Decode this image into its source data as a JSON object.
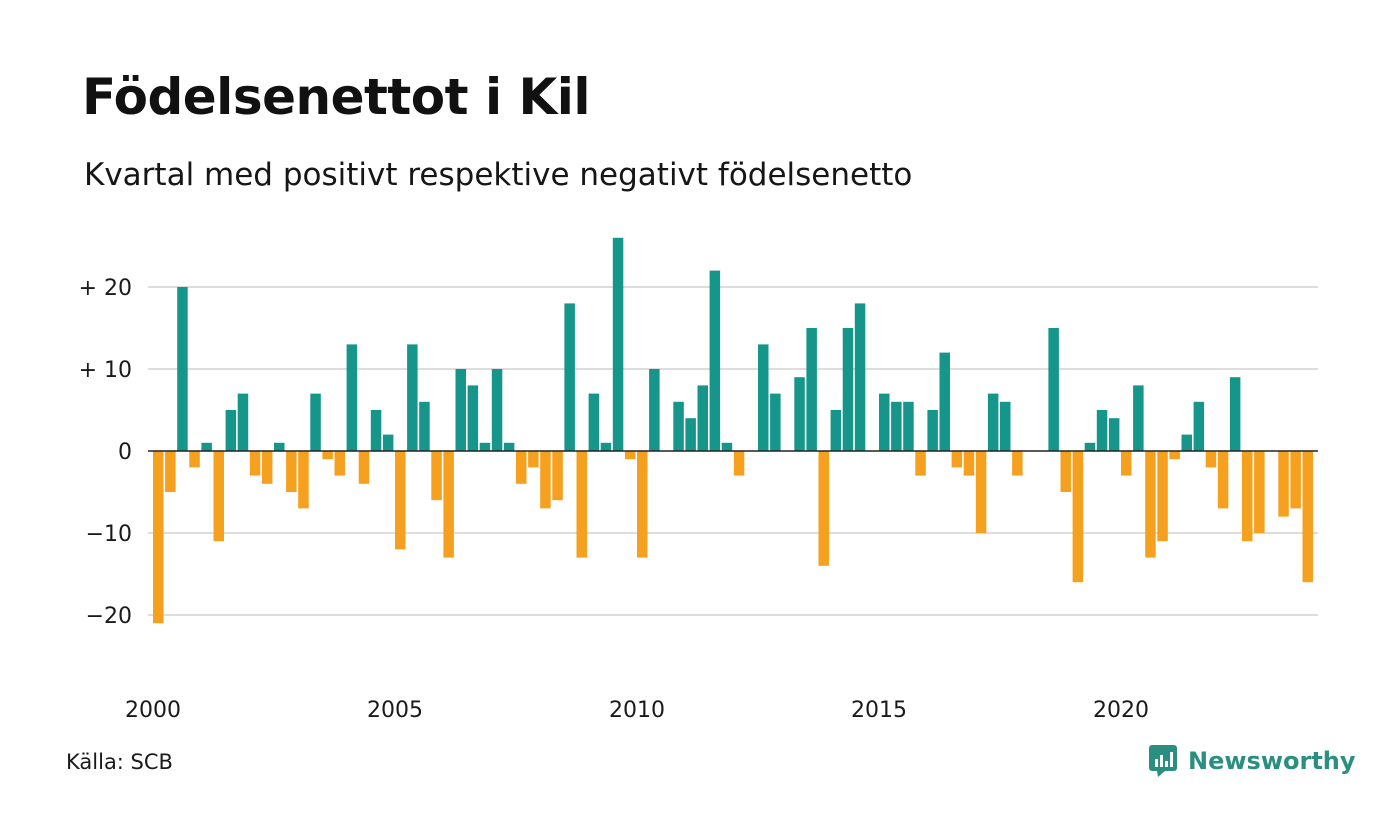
{
  "header": {
    "title": "Födelsenettot i Kil",
    "subtitle": "Kvartal med positivt respektive negativt födelsenetto"
  },
  "footer": {
    "source": "Källa: SCB",
    "brand": "Newsworthy"
  },
  "colors": {
    "positive": "#16968a",
    "negative": "#f5a01e",
    "grid": "#dddddd",
    "zero_line": "#222222",
    "brand": "#2a8f80"
  },
  "chart_data": {
    "type": "bar",
    "y_ticks": [
      {
        "value": 20,
        "label": "+ 20"
      },
      {
        "value": 10,
        "label": "+ 10"
      },
      {
        "value": 0,
        "label": "0"
      },
      {
        "value": -10,
        "label": "−10"
      },
      {
        "value": -20,
        "label": "−20"
      }
    ],
    "x_ticks": [
      "2000",
      "2005",
      "2010",
      "2015",
      "2020"
    ],
    "ylim": [
      -26,
      26
    ],
    "grid": true,
    "x_start_year": 2000,
    "quarters_per_year": 4,
    "values": [
      -21,
      -5,
      20,
      -2,
      1,
      -11,
      5,
      7,
      -3,
      -4,
      1,
      -5,
      -7,
      7,
      -1,
      -3,
      13,
      -4,
      5,
      2,
      -12,
      13,
      6,
      -6,
      -13,
      10,
      8,
      1,
      10,
      1,
      -4,
      -2,
      -7,
      -6,
      18,
      -13,
      7,
      1,
      26,
      -1,
      -13,
      10,
      0,
      6,
      4,
      8,
      22,
      1,
      -3,
      0,
      13,
      7,
      0,
      9,
      15,
      -14,
      5,
      15,
      18,
      0,
      7,
      6,
      6,
      -3,
      5,
      12,
      -2,
      -3,
      -10,
      7,
      6,
      -3,
      0,
      0,
      15,
      -5,
      -16,
      1,
      5,
      4,
      -3,
      8,
      -13,
      -11,
      -1,
      2,
      6,
      -2,
      -7,
      9,
      -11,
      -10,
      0,
      -8,
      -7,
      -16
    ]
  }
}
